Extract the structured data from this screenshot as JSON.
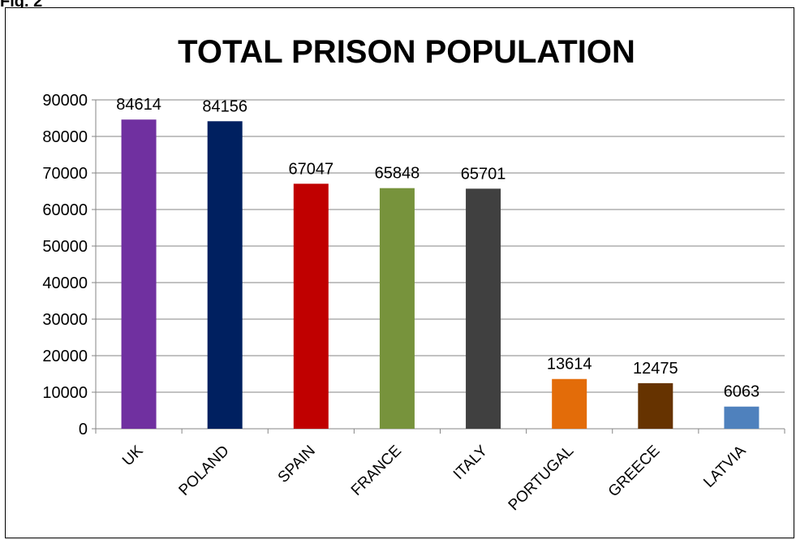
{
  "figure_label": "Fig. 2",
  "chart_data": {
    "type": "bar",
    "title": "TOTAL PRISON POPULATION",
    "xlabel": "",
    "ylabel": "",
    "categories": [
      "UK",
      "POLAND",
      "SPAIN",
      "FRANCE",
      "ITALY",
      "PORTUGAL",
      "GREECE",
      "LATVIA"
    ],
    "values": [
      84614,
      84156,
      67047,
      65848,
      65701,
      13614,
      12475,
      6063
    ],
    "colors": [
      "#7030A0",
      "#002060",
      "#C00000",
      "#77933C",
      "#404040",
      "#E36C09",
      "#663300",
      "#4F81BD"
    ],
    "ylim": [
      0,
      90000
    ],
    "yticks": [
      0,
      10000,
      20000,
      30000,
      40000,
      50000,
      60000,
      70000,
      80000,
      90000
    ],
    "grid": true,
    "data_labels": true,
    "legend": "none"
  }
}
